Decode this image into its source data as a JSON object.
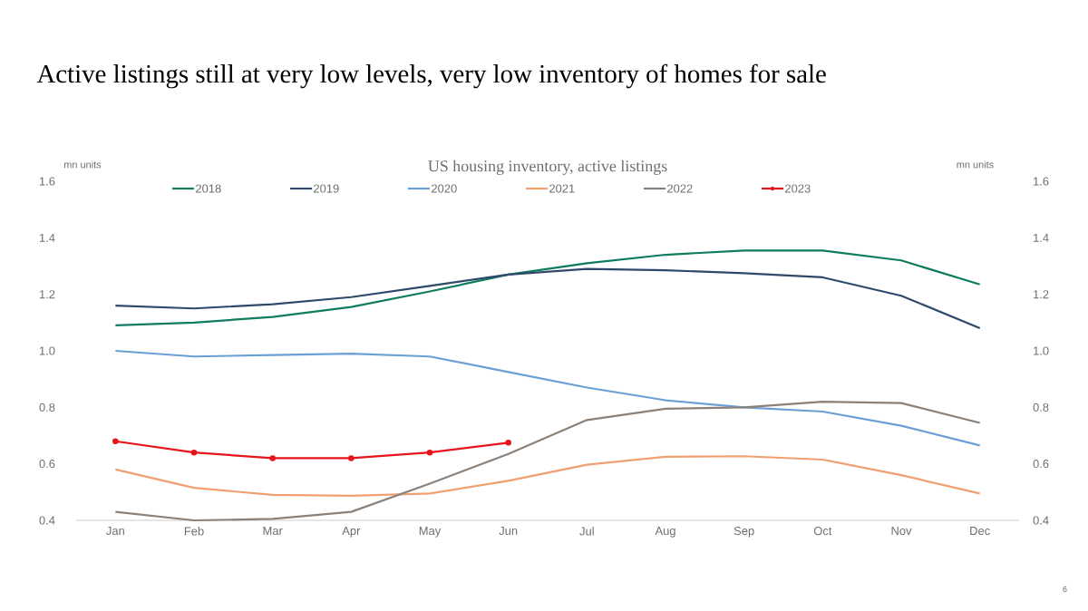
{
  "chart_data": {
    "type": "line",
    "title": "Active listings still at very low levels, very low inventory of homes for sale",
    "subtitle": "US housing inventory, active listings",
    "ylabel": "mn units",
    "y2label": "mn units",
    "categories": [
      "Jan",
      "Feb",
      "Mar",
      "Apr",
      "May",
      "Jun",
      "Jul",
      "Aug",
      "Sep",
      "Oct",
      "Nov",
      "Dec"
    ],
    "series": [
      {
        "name": "2018",
        "color": "#0f7b5f",
        "values": [
          1.09,
          1.1,
          1.12,
          1.155,
          1.21,
          1.27,
          1.31,
          1.34,
          1.355,
          1.355,
          1.32,
          1.235
        ]
      },
      {
        "name": "2019",
        "color": "#2e4a6b",
        "values": [
          1.16,
          1.15,
          1.165,
          1.19,
          1.23,
          1.27,
          1.29,
          1.285,
          1.275,
          1.26,
          1.195,
          1.08
        ]
      },
      {
        "name": "2020",
        "color": "#6aa0d6",
        "values": [
          1.0,
          0.98,
          0.985,
          0.99,
          0.98,
          0.925,
          0.87,
          0.825,
          0.8,
          0.785,
          0.735,
          0.665
        ]
      },
      {
        "name": "2021",
        "color": "#f0a070",
        "values": [
          0.58,
          0.515,
          0.49,
          0.487,
          0.495,
          0.54,
          0.597,
          0.625,
          0.627,
          0.615,
          0.56,
          0.495
        ]
      },
      {
        "name": "2022",
        "color": "#8c8178",
        "values": [
          0.43,
          0.4,
          0.405,
          0.43,
          0.53,
          0.635,
          0.755,
          0.795,
          0.8,
          0.82,
          0.815,
          0.745
        ]
      },
      {
        "name": "2023",
        "color": "#e8141b",
        "marker": "circle",
        "values": [
          0.68,
          0.64,
          0.62,
          0.62,
          0.64,
          0.675,
          null,
          null,
          null,
          null,
          null,
          null
        ]
      }
    ],
    "ylim": [
      0.4,
      1.6
    ],
    "yticks": [
      0.4,
      0.6,
      0.8,
      {
        "value": 1.0,
        "label": "1.0"
      },
      1.2,
      1.4,
      1.6
    ],
    "y2lim": [
      0.4,
      1.6
    ],
    "y2ticks": [
      0.4,
      0.6,
      0.8,
      {
        "value": 1.0,
        "label": "1.0"
      },
      1.2,
      1.4,
      1.6
    ],
    "legend": "top",
    "grid": false,
    "line_style": "solid",
    "annotations": [
      "6"
    ]
  }
}
